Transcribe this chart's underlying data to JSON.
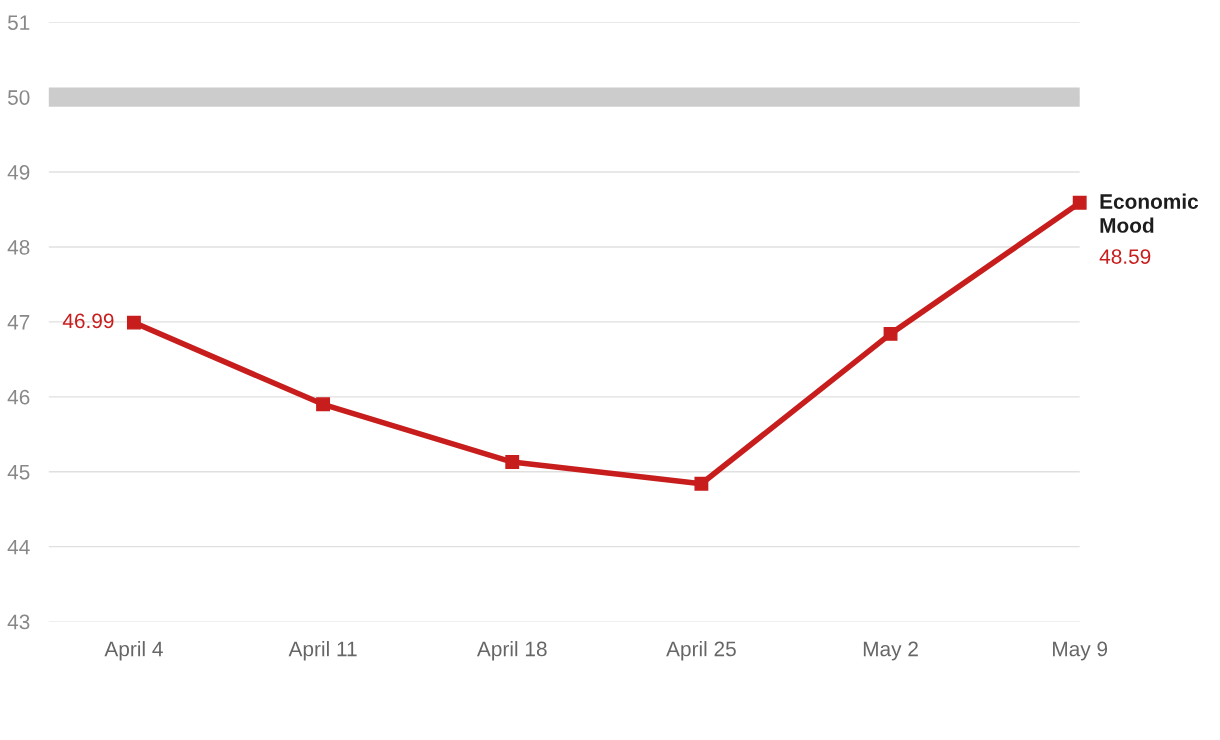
{
  "chart_data": {
    "type": "line",
    "categories": [
      "April 4",
      "April 11",
      "April 18",
      "April 25",
      "May 2",
      "May 9"
    ],
    "series": [
      {
        "name": "Economic Mood",
        "color": "#c71e1d",
        "values": [
          46.99,
          45.9,
          45.13,
          44.84,
          46.84,
          48.59
        ],
        "value_labels": [
          "46.99",
          null,
          null,
          null,
          null,
          "48.59"
        ]
      }
    ],
    "ylim": [
      43,
      51
    ],
    "yticks": [
      43,
      44,
      45,
      46,
      47,
      48,
      49,
      50,
      51
    ],
    "grid": "y",
    "marker": "square",
    "line_style": "solid",
    "ref_lines": [
      {
        "axis": "y",
        "value": 50,
        "color": "#cccccc"
      }
    ]
  }
}
